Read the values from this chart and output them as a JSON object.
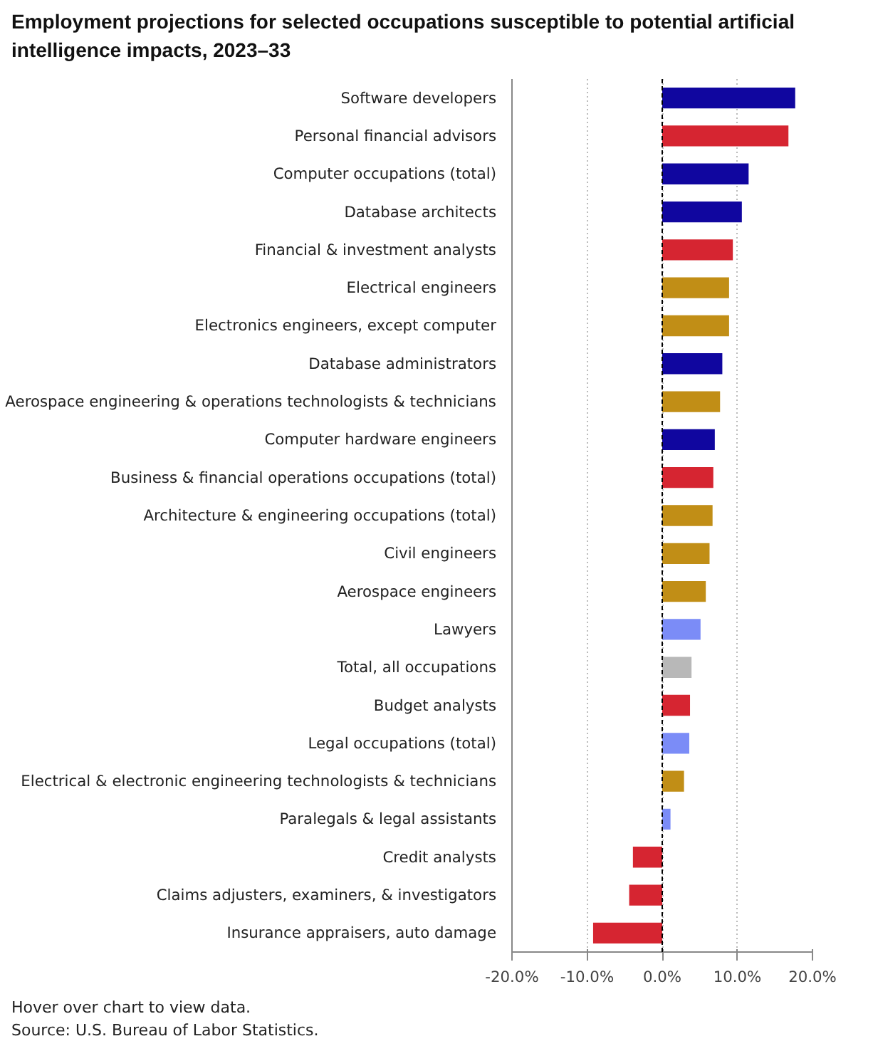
{
  "chart_data": {
    "type": "bar",
    "orientation": "horizontal",
    "title": "Employment projections for selected occupations susceptible to potential artificial intelligence impacts, 2023–33",
    "categories": [
      "Software developers",
      "Personal financial advisors",
      "Computer occupations (total)",
      "Database architects",
      "Financial & investment analysts",
      "Electrical engineers",
      "Electronics engineers, except computer",
      "Database administrators",
      "Aerospace engineering & operations technologists & technicians",
      "Computer hardware engineers",
      "Business & financial operations occupations (total)",
      "Architecture & engineering occupations (total)",
      "Civil engineers",
      "Aerospace engineers",
      "Lawyers",
      "Total, all occupations",
      "Budget analysts",
      "Legal occupations (total)",
      "Electrical & electronic engineering technologists & technicians",
      "Paralegals & legal assistants",
      "Credit analysts",
      "Claims adjusters, examiners, & investigators",
      "Insurance appraisers, auto damage"
    ],
    "values": [
      17.7,
      16.8,
      11.5,
      10.6,
      9.4,
      8.9,
      8.9,
      8.0,
      7.7,
      7.0,
      6.8,
      6.7,
      6.3,
      5.8,
      5.1,
      3.9,
      3.7,
      3.6,
      2.9,
      1.1,
      -3.9,
      -4.4,
      -9.2
    ],
    "colors": [
      "#10069f",
      "#d62531",
      "#10069f",
      "#10069f",
      "#d62531",
      "#c18e16",
      "#c18e16",
      "#10069f",
      "#c18e16",
      "#10069f",
      "#d62531",
      "#c18e16",
      "#c18e16",
      "#c18e16",
      "#7b8cf7",
      "#b8b8b8",
      "#d62531",
      "#7b8cf7",
      "#c18e16",
      "#7b8cf7",
      "#d62531",
      "#d62531",
      "#d62531"
    ],
    "xlim": [
      -20,
      20
    ],
    "xticks": [
      {
        "value": -20,
        "label": "-20.0%"
      },
      {
        "value": -10,
        "label": "-10.0%"
      },
      {
        "value": 0,
        "label": "0.0%"
      },
      {
        "value": 10,
        "label": "10.0%"
      },
      {
        "value": 20,
        "label": "20.0%"
      }
    ],
    "grid": "x",
    "ref_lines": [
      {
        "axis": "x",
        "value": 0,
        "color": "#000000",
        "line_style": "dashed"
      }
    ],
    "annotations": [
      "Hover over chart to view data.",
      "Source: U.S. Bureau of Labor Statistics."
    ]
  }
}
